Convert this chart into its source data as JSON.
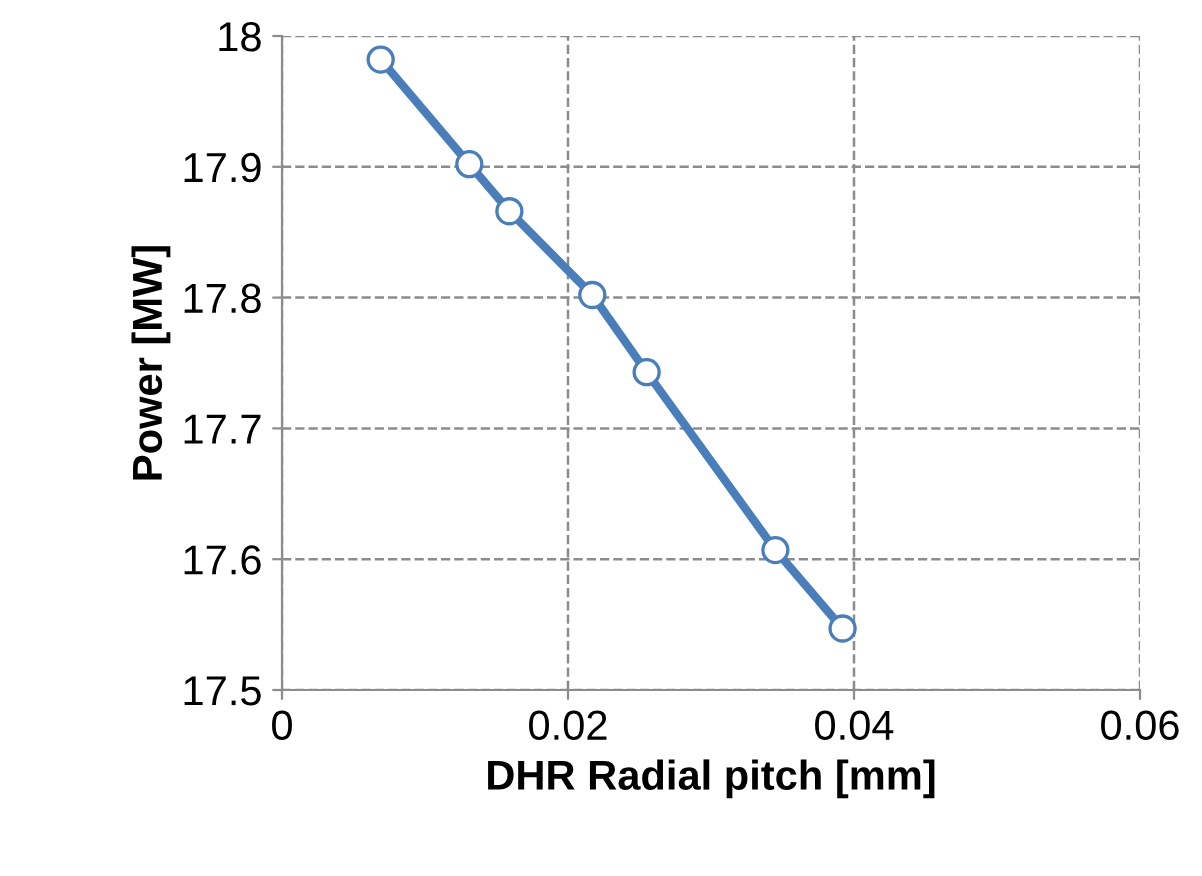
{
  "chart_data": {
    "type": "line",
    "xlabel": "DHR Radial pitch [mm]",
    "ylabel": "Power [MW]",
    "x": [
      0.0069,
      0.0131,
      0.0159,
      0.0217,
      0.0255,
      0.0345,
      0.0392
    ],
    "series": [
      {
        "color": "#4a7ebb",
        "values": [
          17.982,
          17.902,
          17.866,
          17.802,
          17.743,
          17.607,
          17.547
        ]
      }
    ],
    "xlim": [
      0,
      0.06
    ],
    "xticks": [
      0,
      0.02,
      0.04,
      0.06
    ],
    "ylim": [
      17.5,
      18
    ],
    "yticks": [
      17.5,
      17.6,
      17.7,
      17.8,
      17.9,
      18
    ],
    "grid": true,
    "marker": "circle",
    "line_style": "solid"
  }
}
